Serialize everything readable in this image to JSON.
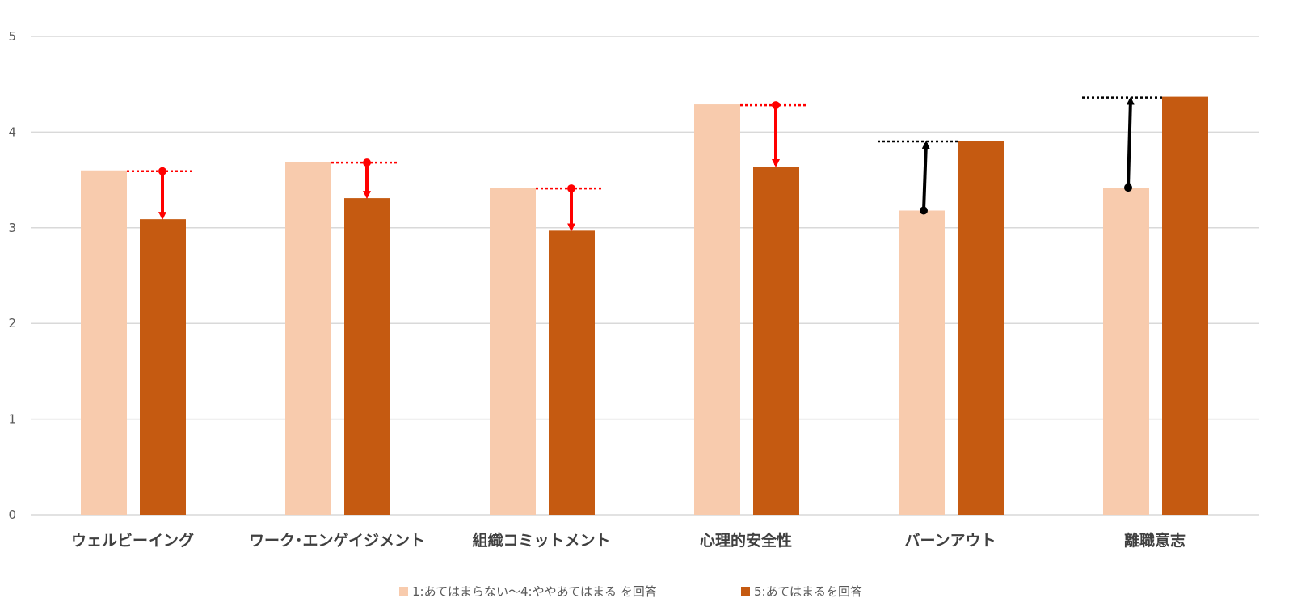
{
  "chart_data": {
    "type": "bar",
    "categories": [
      "ウェルビーイング",
      "ワーク･エンゲイジメント",
      "組織コミットメント",
      "心理的安全性",
      "バーンアウト",
      "離職意志"
    ],
    "series": [
      {
        "name": "1:あてはまらない〜4:ややあてはまる を回答",
        "values": [
          3.6,
          3.69,
          3.42,
          4.29,
          3.18,
          3.42
        ]
      },
      {
        "name": "5:あてはまるを回答",
        "values": [
          3.09,
          3.31,
          2.97,
          3.64,
          3.91,
          4.37
        ]
      }
    ],
    "ylim": [
      0,
      5
    ],
    "yticks": [
      "0",
      "1",
      "2",
      "3",
      "4",
      "5"
    ],
    "grid": true,
    "legend_position": "bottom",
    "annotations": {
      "arrow_colors_by_category": [
        "#ff0000",
        "#ff0000",
        "#ff0000",
        "#ff0000",
        "#000000",
        "#000000"
      ]
    },
    "colors": {
      "series_1": "#f8cbad",
      "series_2": "#c55a11",
      "gridline": "#d9d9d9",
      "decrease_arrow": "#ff0000",
      "increase_arrow": "#000000"
    }
  }
}
